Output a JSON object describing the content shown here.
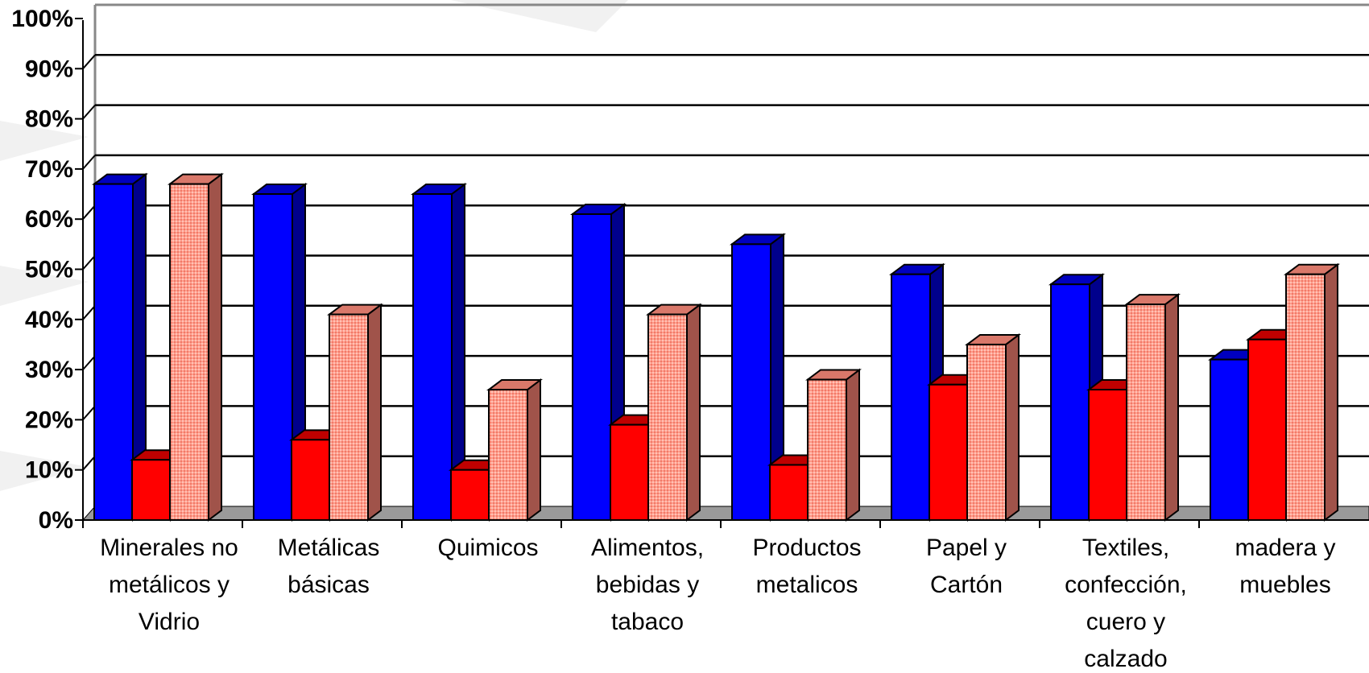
{
  "chart_data": {
    "type": "bar",
    "title": "",
    "xlabel": "",
    "ylabel": "",
    "ylim": [
      0,
      100
    ],
    "grid": true,
    "legend": "none",
    "y_ticks": [
      "0%",
      "10%",
      "20%",
      "30%",
      "40%",
      "50%",
      "60%",
      "70%",
      "80%",
      "90%",
      "100%"
    ],
    "categories": [
      [
        "Minerales no",
        "metálicos y",
        "Vidrio"
      ],
      [
        "Metálicas",
        "básicas"
      ],
      [
        "Quimicos"
      ],
      [
        "Alimentos,",
        "bebidas y",
        "tabaco"
      ],
      [
        "Productos",
        "metalicos"
      ],
      [
        "Papel y",
        "Cartón"
      ],
      [
        "Textiles,",
        "confección,",
        "cuero y",
        "calzado"
      ],
      [
        "madera y",
        "muebles"
      ]
    ],
    "series": [
      {
        "values": [
          67,
          65,
          65,
          61,
          55,
          49,
          47,
          32
        ],
        "color": "#0000ff"
      },
      {
        "values": [
          12,
          16,
          10,
          19,
          11,
          27,
          26,
          36
        ],
        "color": "#ff0000"
      },
      {
        "values": [
          67,
          41,
          26,
          41,
          28,
          35,
          43,
          49
        ],
        "color": "#ff9f8f"
      }
    ]
  }
}
